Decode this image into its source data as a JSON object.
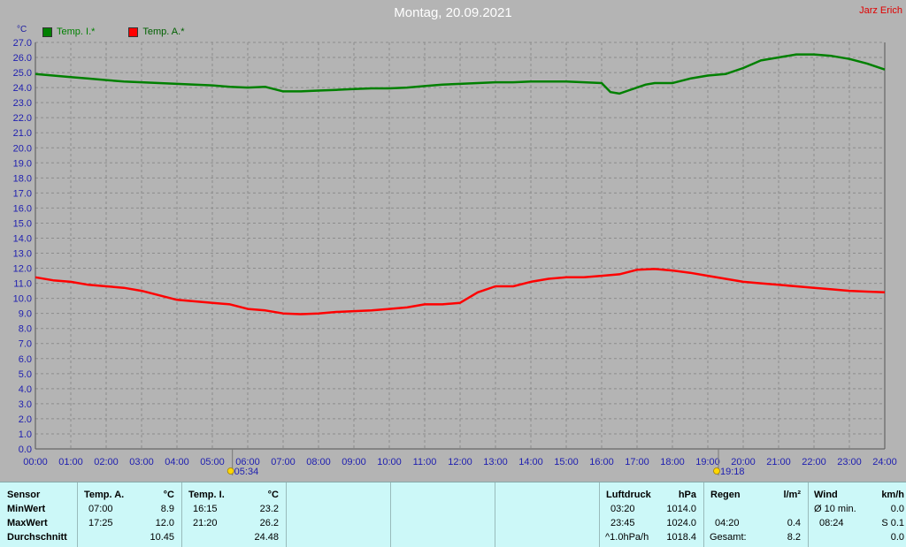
{
  "title": "Montag, 20.09.2021",
  "author": "Jarz Erich",
  "legend": [
    {
      "label": "Temp. I.*",
      "color": "#008000"
    },
    {
      "label": "Temp. A.*",
      "color": "#ff0000"
    }
  ],
  "chart_data": {
    "type": "line",
    "ylabel": "°C",
    "ylim": [
      0,
      27
    ],
    "ytick_labels": [
      "0.0",
      "1.0",
      "2.0",
      "3.0",
      "4.0",
      "5.0",
      "6.0",
      "7.0",
      "8.0",
      "9.0",
      "10.0",
      "11.0",
      "12.0",
      "13.0",
      "14.0",
      "15.0",
      "16.0",
      "17.0",
      "18.0",
      "19.0",
      "20.0",
      "21.0",
      "22.0",
      "23.0",
      "24.0",
      "25.0",
      "26.0",
      "27.0"
    ],
    "xlim": [
      0,
      24
    ],
    "xtick_labels": [
      "00:00",
      "01:00",
      "02:00",
      "03:00",
      "04:00",
      "05:00",
      "06:00",
      "07:00",
      "08:00",
      "09:00",
      "10:00",
      "11:00",
      "12:00",
      "13:00",
      "14:00",
      "15:00",
      "16:00",
      "17:00",
      "18:00",
      "19:00",
      "20:00",
      "21:00",
      "22:00",
      "23:00",
      "24:00"
    ],
    "grid": true,
    "markers": [
      {
        "label": "05:34",
        "hour": 5.567,
        "kind": "sunrise"
      },
      {
        "label": "19:18",
        "hour": 19.3,
        "kind": "sunset"
      }
    ],
    "series": [
      {
        "name": "Temp. I.*",
        "color": "#008000",
        "x": [
          0,
          0.5,
          1,
          1.5,
          2,
          2.5,
          3,
          3.5,
          4,
          4.5,
          5,
          5.5,
          6,
          6.5,
          7,
          7.5,
          8,
          8.5,
          9,
          9.5,
          10,
          10.5,
          11,
          11.5,
          12,
          12.5,
          13,
          13.5,
          14,
          14.5,
          15,
          15.5,
          16,
          16.25,
          16.5,
          16.75,
          17,
          17.25,
          17.5,
          18,
          18.5,
          19,
          19.5,
          20,
          20.5,
          21,
          21.5,
          22,
          22.5,
          23,
          23.5,
          24
        ],
        "y": [
          24.9,
          24.8,
          24.7,
          24.6,
          24.5,
          24.4,
          24.35,
          24.3,
          24.25,
          24.2,
          24.15,
          24.05,
          24.0,
          24.05,
          23.75,
          23.75,
          23.8,
          23.85,
          23.9,
          23.95,
          23.95,
          24.0,
          24.1,
          24.2,
          24.25,
          24.3,
          24.35,
          24.35,
          24.4,
          24.4,
          24.4,
          24.35,
          24.3,
          23.7,
          23.6,
          23.8,
          24.0,
          24.2,
          24.3,
          24.3,
          24.6,
          24.8,
          24.9,
          25.3,
          25.8,
          26.0,
          26.2,
          26.2,
          26.1,
          25.9,
          25.6,
          25.2
        ]
      },
      {
        "name": "Temp. A.*",
        "color": "#ff0000",
        "x": [
          0,
          0.5,
          1,
          1.5,
          2,
          2.5,
          3,
          3.5,
          4,
          4.5,
          5,
          5.5,
          6,
          6.5,
          7,
          7.5,
          8,
          8.5,
          9,
          9.5,
          10,
          10.5,
          11,
          11.5,
          12,
          12.5,
          13,
          13.5,
          14,
          14.5,
          15,
          15.5,
          16,
          16.5,
          17,
          17.5,
          18,
          18.5,
          19,
          19.5,
          20,
          20.5,
          21,
          21.5,
          22,
          22.5,
          23,
          23.5,
          24
        ],
        "y": [
          11.4,
          11.2,
          11.1,
          10.9,
          10.8,
          10.7,
          10.5,
          10.2,
          9.9,
          9.8,
          9.7,
          9.6,
          9.3,
          9.2,
          9.0,
          8.95,
          9.0,
          9.1,
          9.15,
          9.2,
          9.3,
          9.4,
          9.6,
          9.6,
          9.7,
          10.4,
          10.8,
          10.8,
          11.1,
          11.3,
          11.4,
          11.4,
          11.5,
          11.6,
          11.9,
          11.95,
          11.85,
          11.7,
          11.5,
          11.3,
          11.1,
          11.0,
          10.9,
          10.8,
          10.7,
          10.6,
          10.5,
          10.45,
          10.4
        ]
      }
    ]
  },
  "stats": {
    "sensor": {
      "header": "Sensor",
      "rows": [
        "MinWert",
        "MaxWert",
        "Durchschnitt"
      ]
    },
    "temp_a": {
      "header": "Temp. A.",
      "unit": "°C",
      "min_time": "07:00",
      "min_val": "8.9",
      "max_time": "17:25",
      "max_val": "12.0",
      "avg": "10.45"
    },
    "temp_i": {
      "header": "Temp. I.",
      "unit": "°C",
      "min_time": "16:15",
      "min_val": "23.2",
      "max_time": "21:20",
      "max_val": "26.2",
      "avg": "24.48"
    },
    "luftdruck": {
      "header": "Luftdruck",
      "unit": "hPa",
      "min_time": "03:20",
      "min_val": "1014.0",
      "max_time": "23:45",
      "max_val": "1024.0",
      "trend_label": "^1.0hPa/h",
      "trend_val": "1018.4"
    },
    "regen": {
      "header": "Regen",
      "unit": "l/m²",
      "time": "04:20",
      "val": "0.4",
      "total_label": "Gesamt:",
      "total_val": "8.2"
    },
    "wind": {
      "header": "Wind",
      "unit": "km/h",
      "avg_label": "Ø 10 min.",
      "avg_val": "0.0",
      "max_time": "08:24",
      "max_val": "S 0.1",
      "last_val": "0.0"
    }
  }
}
